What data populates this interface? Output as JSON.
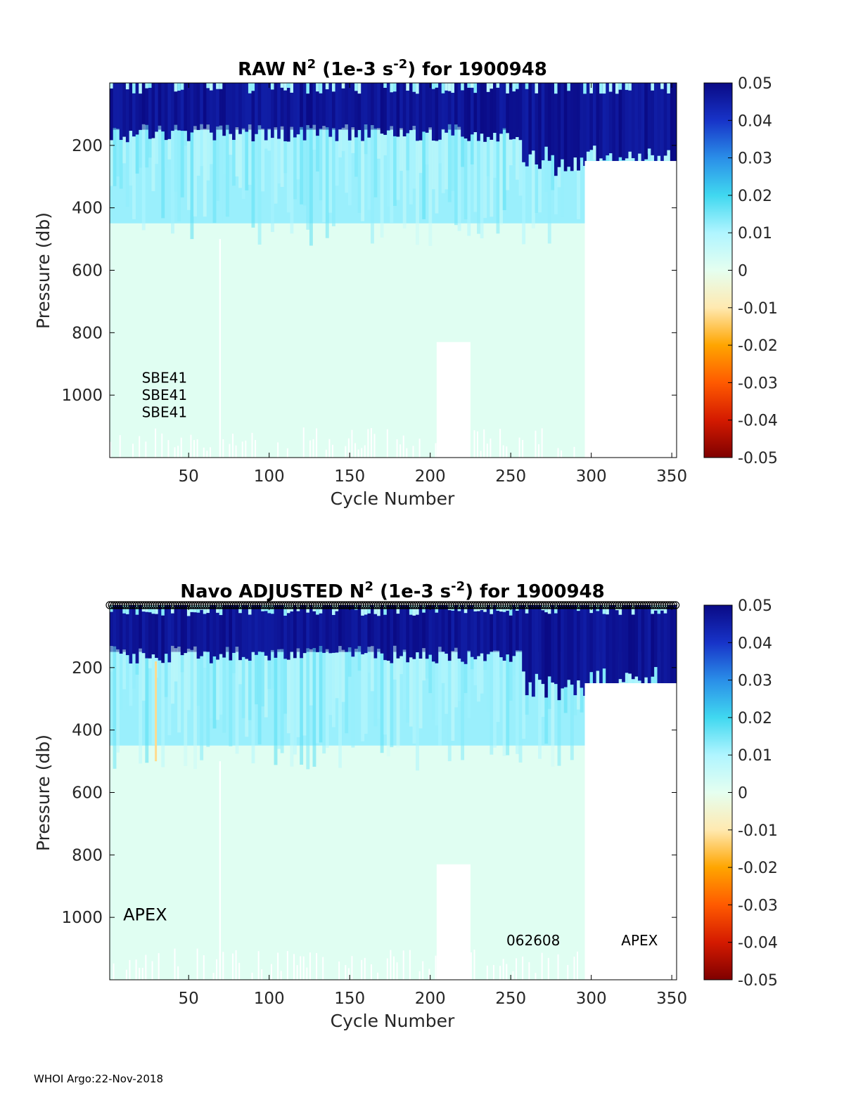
{
  "footer": "WHOI Argo:22-Nov-2018",
  "colors": {
    "axis": "#000000",
    "tick_label": "#262626",
    "stripe_white": "#ffffff",
    "marker_row": "#000000",
    "colormap": [
      "#7f0000",
      "#d41a00",
      "#ff5a00",
      "#ffa500",
      "#ffe9b0",
      "#e5fff0",
      "#b0f5ff",
      "#40d8f0",
      "#2a8ee8",
      "#1733c8",
      "#0a0a85"
    ]
  },
  "chart_data": [
    {
      "type": "heatmap",
      "title_parts": [
        "RAW N",
        "2",
        " (1e-3 s",
        "-2",
        ") for 1900948"
      ],
      "xlabel": "Cycle Number",
      "ylabel": "Pressure (db)",
      "xlim": [
        1,
        353
      ],
      "ylim": [
        0,
        1200
      ],
      "y_reversed": true,
      "xticks": [
        50,
        100,
        150,
        200,
        250,
        300,
        350
      ],
      "yticks": [
        200,
        400,
        600,
        800,
        1000
      ],
      "clim": [
        -0.05,
        0.05
      ],
      "colorbar_ticks": [
        "0.05",
        "0.04",
        "0.03",
        "0.02",
        "0.01",
        "0",
        "-0.01",
        "-0.02",
        "-0.03",
        "-0.04",
        "-0.05"
      ],
      "regions_by_pressure": [
        {
          "pmin": 0,
          "pmax": 150,
          "value": 0.05
        },
        {
          "pmin": 150,
          "pmax": 450,
          "value": 0.012
        },
        {
          "pmin": 450,
          "pmax": 1200,
          "value": 0.001
        }
      ],
      "gaps": [
        {
          "cycle": [
            69,
            70
          ],
          "pmin": 500,
          "pmax": 1200
        },
        {
          "cycle": [
            204,
            225
          ],
          "pmin": 830,
          "pmax": 1200
        },
        {
          "cycle": [
            296,
            353
          ],
          "pmin": 250,
          "pmax": 1200
        }
      ],
      "annotations": [
        {
          "text": "SBE41",
          "cycle": 35,
          "pressure": 960
        },
        {
          "text": "SBE41",
          "cycle": 35,
          "pressure": 1015
        },
        {
          "text": "SBE41",
          "cycle": 35,
          "pressure": 1070
        }
      ]
    },
    {
      "type": "heatmap",
      "title_parts": [
        "Navo  ADJUSTED N",
        "2",
        " (1e-3 s",
        "-2",
        ") for 1900948"
      ],
      "xlabel": "Cycle Number",
      "ylabel": "Pressure (db)",
      "xlim": [
        1,
        353
      ],
      "ylim": [
        0,
        1200
      ],
      "y_reversed": true,
      "xticks": [
        50,
        100,
        150,
        200,
        250,
        300,
        350
      ],
      "yticks": [
        200,
        400,
        600,
        800,
        1000
      ],
      "clim": [
        -0.05,
        0.05
      ],
      "colorbar_ticks": [
        "0.05",
        "0.04",
        "0.03",
        "0.02",
        "0.01",
        "0",
        "-0.01",
        "-0.02",
        "-0.03",
        "-0.04",
        "-0.05"
      ],
      "marker_row": true,
      "regions_by_pressure": [
        {
          "pmin": 0,
          "pmax": 150,
          "value": 0.05
        },
        {
          "pmin": 150,
          "pmax": 450,
          "value": 0.012
        },
        {
          "pmin": 450,
          "pmax": 1200,
          "value": 0.001
        }
      ],
      "gaps": [
        {
          "cycle": [
            69,
            70
          ],
          "pmin": 500,
          "pmax": 1200
        },
        {
          "cycle": [
            204,
            225
          ],
          "pmin": 830,
          "pmax": 1200
        },
        {
          "cycle": [
            296,
            353
          ],
          "pmin": 250,
          "pmax": 1200
        }
      ],
      "highlight": {
        "cycle": 29,
        "pmin": 180,
        "pmax": 500,
        "value": -0.012
      },
      "annotations": [
        {
          "text": "APEX",
          "cycle": 23,
          "pressure": 1010,
          "size": "large"
        },
        {
          "text": "062608",
          "cycle": 264,
          "pressure": 1090
        },
        {
          "text": "APEX",
          "cycle": 330,
          "pressure": 1090
        }
      ]
    }
  ]
}
